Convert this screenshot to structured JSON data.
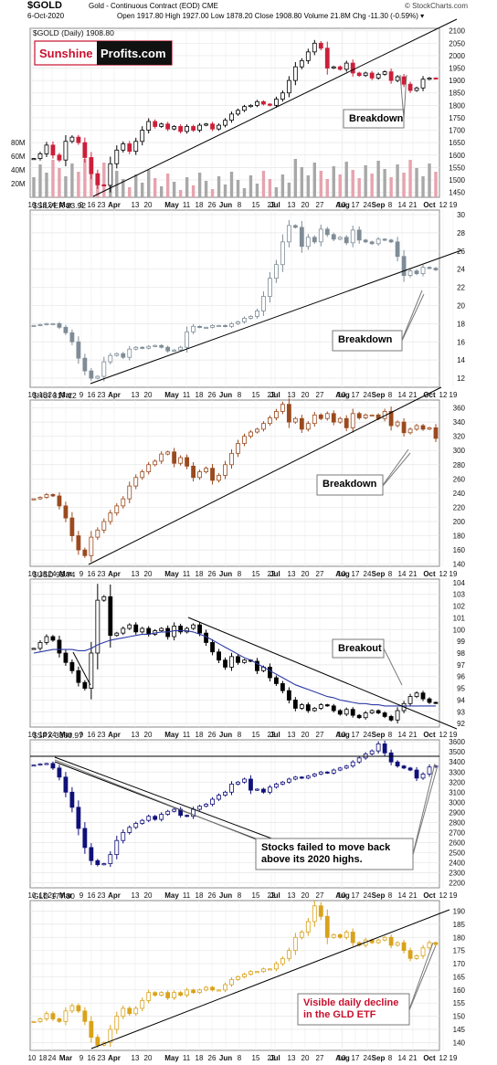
{
  "header": {
    "symbol": "$GOLD",
    "description": "Gold - Continuous Contract (EOD) CME",
    "date": "6-Oct-2020",
    "ohlc": "Open 1917.80  High 1927.00  Low 1878.20  Close 1908.80  Volume 21.8M  Chg -11.30 (-0.59%) ▾",
    "credit": "© StockCharts.com"
  },
  "logo": {
    "part1": "Sunshine",
    "part2": "Profits.com"
  },
  "colors": {
    "gold_up": "#000000",
    "gold_down": "#cc1f3a",
    "silver": "#7f8c97",
    "hui": "#9a4a1e",
    "usd": "#000000",
    "usd_ma": "#2d3aa6",
    "spx": "#10107a",
    "gld": "#d9a21b",
    "annotation_red": "#c8102e"
  },
  "x_axis_labels": [
    "10",
    "18",
    "24",
    "Mar",
    "9",
    "16",
    "23",
    "Apr",
    "13",
    "20",
    "May",
    "11",
    "18",
    "26",
    "Jun",
    "8",
    "15",
    "22",
    "Jul",
    "13",
    "20",
    "27",
    "Aug",
    "10",
    "17",
    "24",
    "Sep",
    "8",
    "14",
    "21",
    "Oct",
    "12",
    "19"
  ],
  "chart_data": [
    {
      "type": "line",
      "title": "$GOLD (Daily) 1908.80",
      "ylim": [
        1430,
        2110
      ],
      "yticks": [
        1450,
        1500,
        1550,
        1600,
        1650,
        1700,
        1750,
        1800,
        1850,
        1900,
        1950,
        2000,
        2050,
        2100
      ],
      "volume_ticks": [
        "20M",
        "40M",
        "60M",
        "80M"
      ],
      "close": [
        1586,
        1605,
        1640,
        1600,
        1580,
        1655,
        1672,
        1650,
        1590,
        1525,
        1480,
        1478,
        1565,
        1620,
        1645,
        1615,
        1655,
        1700,
        1735,
        1715,
        1725,
        1705,
        1715,
        1695,
        1715,
        1700,
        1720,
        1725,
        1705,
        1720,
        1740,
        1765,
        1780,
        1795,
        1800,
        1815,
        1805,
        1800,
        1825,
        1850,
        1900,
        1955,
        1980,
        2015,
        2050,
        2030,
        1950,
        1955,
        1945,
        1970,
        1930,
        1920,
        1930,
        1910,
        1925,
        1935,
        1900,
        1915,
        1885,
        1860,
        1870,
        1905,
        1910,
        1908.8
      ],
      "annotations": [
        {
          "text": "Breakdown"
        }
      ]
    },
    {
      "type": "line",
      "title": "$SILVER 23.92",
      "ylim": [
        11,
        30.5
      ],
      "yticks": [
        12,
        14,
        16,
        18,
        20,
        22,
        24,
        26,
        28,
        30
      ],
      "close": [
        17.8,
        17.9,
        18.0,
        18.0,
        17.6,
        17.0,
        16.0,
        14.2,
        12.8,
        12.0,
        12.2,
        13.8,
        14.5,
        14.7,
        14.3,
        15.2,
        15.4,
        15.3,
        15.5,
        15.6,
        15.4,
        15.0,
        15.1,
        15.4,
        17.1,
        17.7,
        17.6,
        17.6,
        17.8,
        17.8,
        17.7,
        18.0,
        18.2,
        18.6,
        18.8,
        19.4,
        21.0,
        23.0,
        24.5,
        27.0,
        28.8,
        28.6,
        26.5,
        27.5,
        27.0,
        28.4,
        27.8,
        27.3,
        27.5,
        26.9,
        28.3,
        27.2,
        27.0,
        26.8,
        27.3,
        27.2,
        27.0,
        25.4,
        23.3,
        23.8,
        23.5,
        24.2,
        24.1,
        23.92
      ],
      "annotations": [
        {
          "text": "Breakdown"
        }
      ]
    },
    {
      "type": "line",
      "title": "$HUI 317.12",
      "ylim": [
        137,
        371
      ],
      "yticks": [
        140,
        160,
        180,
        200,
        220,
        240,
        260,
        280,
        300,
        320,
        340,
        360
      ],
      "close": [
        232,
        234,
        238,
        236,
        222,
        205,
        180,
        160,
        152,
        178,
        188,
        200,
        212,
        222,
        232,
        250,
        262,
        270,
        280,
        285,
        295,
        298,
        282,
        290,
        278,
        262,
        270,
        275,
        258,
        265,
        280,
        296,
        310,
        320,
        326,
        330,
        338,
        346,
        355,
        365,
        340,
        345,
        330,
        338,
        350,
        345,
        352,
        340,
        345,
        332,
        352,
        346,
        350,
        350,
        345,
        355,
        335,
        340,
        325,
        330,
        335,
        330,
        332,
        317.12
      ],
      "annotations": [
        {
          "text": "Breakdown"
        }
      ]
    },
    {
      "type": "line",
      "title": "$USD 93.74",
      "ylim": [
        91.7,
        104.3
      ],
      "yticks": [
        92,
        93,
        94,
        95,
        96,
        97,
        98,
        99,
        100,
        101,
        102,
        103,
        104
      ],
      "close": [
        98.4,
        98.9,
        99.4,
        99.1,
        98.0,
        97.2,
        96.5,
        95.5,
        95.0,
        98.0,
        102.5,
        102.8,
        99.5,
        99.7,
        100.1,
        100.4,
        99.8,
        100.1,
        99.6,
        99.9,
        100.1,
        99.4,
        100.3,
        99.8,
        100.1,
        100.4,
        99.7,
        98.9,
        98.1,
        97.4,
        96.8,
        97.7,
        97.2,
        97.4,
        97.3,
        96.5,
        96.8,
        95.9,
        95.4,
        94.8,
        94.0,
        93.3,
        93.6,
        93.1,
        93.3,
        93.6,
        93.5,
        93.1,
        92.8,
        93.2,
        92.7,
        92.5,
        92.9,
        93.1,
        92.9,
        92.6,
        92.3,
        93.1,
        93.7,
        94.3,
        94.6,
        94.1,
        93.8,
        93.74
      ],
      "series_ma": [
        98.0,
        98.1,
        98.2,
        98.3,
        98.3,
        98.3,
        98.3,
        98.2,
        98.2,
        98.4,
        98.7,
        98.9,
        99.1,
        99.2,
        99.3,
        99.4,
        99.5,
        99.6,
        99.6,
        99.7,
        99.8,
        99.8,
        99.9,
        99.9,
        99.9,
        99.8,
        99.6,
        99.4,
        99.1,
        98.8,
        98.5,
        98.2,
        97.9,
        97.6,
        97.4,
        97.1,
        96.8,
        96.5,
        96.2,
        95.9,
        95.6,
        95.3,
        95.1,
        94.9,
        94.7,
        94.5,
        94.3,
        94.2,
        94.0,
        93.9,
        93.8,
        93.7,
        93.7,
        93.6,
        93.6,
        93.5,
        93.5,
        93.5,
        93.5,
        93.5,
        93.5,
        93.5,
        93.5,
        93.5
      ],
      "annotations": [
        {
          "text": "Breakout"
        }
      ]
    },
    {
      "type": "line",
      "title": "$SPX 3360.97",
      "ylim": [
        2150,
        3620
      ],
      "yticks": [
        2200,
        2300,
        2400,
        2500,
        2600,
        2700,
        2800,
        2900,
        3000,
        3100,
        3200,
        3300,
        3400,
        3500,
        3600
      ],
      "close": [
        3370,
        3380,
        3385,
        3340,
        3250,
        3100,
        2950,
        2740,
        2550,
        2420,
        2380,
        2390,
        2480,
        2620,
        2700,
        2750,
        2790,
        2820,
        2860,
        2830,
        2880,
        2910,
        2930,
        2870,
        2860,
        2930,
        2960,
        2980,
        3030,
        3070,
        3100,
        3180,
        3200,
        3230,
        3120,
        3130,
        3100,
        3150,
        3180,
        3200,
        3230,
        3250,
        3240,
        3260,
        3280,
        3300,
        3290,
        3320,
        3340,
        3360,
        3400,
        3440,
        3480,
        3510,
        3580,
        3490,
        3400,
        3360,
        3340,
        3320,
        3240,
        3280,
        3350,
        3360.97
      ],
      "annotations": [
        {
          "text": "Stocks failed to move back above its 2020 highs."
        }
      ]
    },
    {
      "type": "line",
      "title": "GLD 177.30",
      "ylim": [
        137,
        194
      ],
      "yticks": [
        140,
        145,
        150,
        155,
        160,
        165,
        170,
        175,
        180,
        185,
        190
      ],
      "close": [
        148,
        149,
        151,
        149,
        148,
        152,
        154,
        152,
        148,
        142,
        139,
        140,
        145,
        150,
        153,
        151,
        153,
        156,
        159,
        158,
        159,
        157,
        159,
        158,
        160,
        159,
        160,
        161,
        160,
        160,
        162,
        164,
        165,
        166,
        167,
        167,
        168,
        168,
        170,
        172,
        175,
        180,
        182,
        186,
        192,
        188,
        180,
        181,
        180,
        182,
        178,
        177,
        179,
        178,
        179,
        180,
        177,
        178,
        175,
        172,
        173,
        176,
        178,
        177.3
      ],
      "annotations": [
        {
          "text": "Visible daily decline in the GLD ETF"
        }
      ]
    }
  ]
}
